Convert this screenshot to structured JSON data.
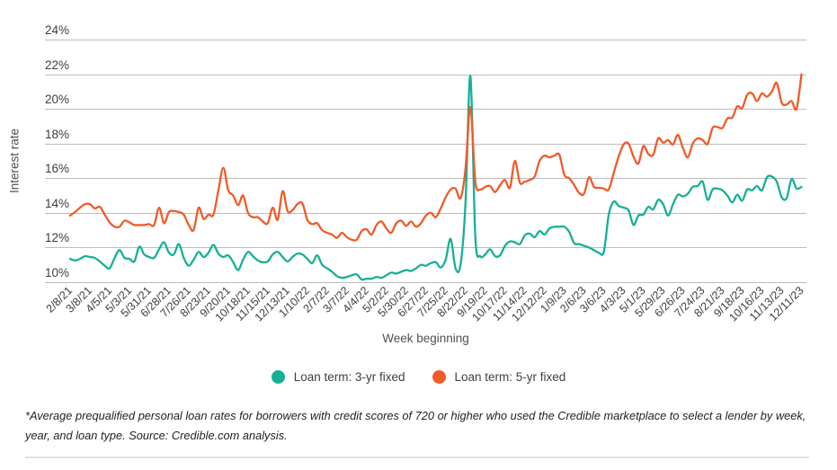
{
  "page": {
    "footnote": "*Average prequalified personal loan rates for borrowers with credit scores of 720 or higher who used the Credible marketplace to select a lender by week, year, and loan type. Source: Credible.com analysis."
  },
  "chart_data": {
    "type": "line",
    "title": "",
    "xlabel": "Week beginning",
    "ylabel": "Interest rate",
    "y_unit": "%",
    "ylim": [
      10,
      24
    ],
    "y_ticks": [
      24,
      22,
      20,
      18,
      16,
      14,
      12,
      10
    ],
    "grid": true,
    "legend_position": "bottom",
    "weeks_per_tick": 4,
    "colors": {
      "grid": "#bdbdbd",
      "tick_text": "#3c4043"
    },
    "x_tick_labels": [
      "2/8/21",
      "3/8/21",
      "4/5/21",
      "5/3/21",
      "5/31/21",
      "6/28/21",
      "7/26/21",
      "8/23/21",
      "9/20/21",
      "10/18/21",
      "11/15/21",
      "12/13/21",
      "1/10/22",
      "2/7/22",
      "3/7/22",
      "4/4/22",
      "5/2/22",
      "5/30/22",
      "6/27/22",
      "7/25/22",
      "8/22/22",
      "9/19/22",
      "10/17/22",
      "11/14/22",
      "12/12/22",
      "1/9/23",
      "2/6/23",
      "3/6/23",
      "4/3/23",
      "5/1/23",
      "5/29/23",
      "6/26/23",
      "7/24/23",
      "8/21/23",
      "9/18/23",
      "10/16/23",
      "11/13/23",
      "12/11/23"
    ],
    "series": [
      {
        "name": "Loan term: 3-yr fixed",
        "color": "#16b096",
        "values": [
          11.35,
          11.25,
          11.35,
          11.5,
          11.45,
          11.4,
          11.2,
          10.95,
          10.8,
          11.4,
          11.85,
          11.4,
          11.35,
          11.2,
          12.05,
          11.6,
          11.45,
          11.4,
          11.9,
          12.3,
          11.7,
          11.6,
          12.2,
          11.4,
          10.95,
          11.3,
          11.75,
          11.45,
          11.7,
          12.15,
          11.65,
          11.45,
          11.55,
          11.15,
          10.7,
          11.3,
          11.75,
          11.5,
          11.25,
          11.15,
          11.2,
          11.6,
          11.75,
          11.45,
          11.2,
          11.45,
          11.65,
          11.6,
          11.35,
          11.1,
          11.55,
          11.0,
          10.8,
          10.6,
          10.35,
          10.25,
          10.3,
          10.4,
          10.45,
          10.15,
          10.2,
          10.2,
          10.3,
          10.25,
          10.4,
          10.55,
          10.5,
          10.6,
          10.7,
          10.65,
          10.8,
          11.0,
          10.95,
          11.1,
          11.15,
          10.85,
          11.3,
          12.5,
          10.8,
          11.0,
          14.5,
          21.9,
          12.6,
          11.5,
          11.6,
          11.9,
          11.5,
          11.55,
          12.1,
          12.35,
          12.3,
          12.2,
          12.7,
          12.8,
          12.6,
          12.95,
          12.75,
          13.1,
          13.2,
          13.2,
          13.2,
          12.9,
          12.25,
          12.2,
          12.1,
          12.0,
          11.85,
          11.7,
          11.75,
          13.9,
          14.65,
          14.4,
          14.3,
          14.15,
          13.3,
          13.85,
          13.9,
          14.35,
          14.2,
          14.75,
          14.5,
          13.85,
          14.5,
          15.05,
          14.95,
          15.1,
          15.5,
          15.55,
          15.8,
          14.75,
          15.35,
          15.4,
          15.3,
          15.0,
          14.6,
          15.05,
          14.7,
          15.35,
          15.3,
          15.55,
          15.3,
          16.05,
          16.1,
          15.8,
          14.9,
          14.85,
          15.95,
          15.4,
          15.5
        ]
      },
      {
        "name": "Loan term: 5-yr fixed",
        "color": "#f05b28",
        "values": [
          13.85,
          14.05,
          14.3,
          14.5,
          14.5,
          14.25,
          14.35,
          13.9,
          13.45,
          13.2,
          13.2,
          13.55,
          13.45,
          13.3,
          13.3,
          13.3,
          13.35,
          13.3,
          14.3,
          13.4,
          14.05,
          14.1,
          14.05,
          13.9,
          13.3,
          13.0,
          14.3,
          13.65,
          13.9,
          13.9,
          15.3,
          16.6,
          15.3,
          15.0,
          14.45,
          15.0,
          14.0,
          13.75,
          13.75,
          13.5,
          13.4,
          14.3,
          13.6,
          15.25,
          14.1,
          14.15,
          14.5,
          14.55,
          13.6,
          13.35,
          13.4,
          13.0,
          12.85,
          12.75,
          12.55,
          12.85,
          12.6,
          12.45,
          12.45,
          12.95,
          13.05,
          12.75,
          13.3,
          13.5,
          13.1,
          12.85,
          13.4,
          13.55,
          13.25,
          13.5,
          13.2,
          13.4,
          13.85,
          14.0,
          13.75,
          14.25,
          14.9,
          15.35,
          15.4,
          14.85,
          16.5,
          20.1,
          15.8,
          15.35,
          15.5,
          15.55,
          15.2,
          15.6,
          15.9,
          15.45,
          17.0,
          15.75,
          15.8,
          15.9,
          16.1,
          17.0,
          17.3,
          17.2,
          17.3,
          17.35,
          16.2,
          16.0,
          15.6,
          15.15,
          15.1,
          16.05,
          15.5,
          15.45,
          15.4,
          15.35,
          16.3,
          17.25,
          17.95,
          18.0,
          17.25,
          16.85,
          17.85,
          17.4,
          17.35,
          18.3,
          18.05,
          18.2,
          17.95,
          18.5,
          17.75,
          17.2,
          18.0,
          18.3,
          18.2,
          17.98,
          18.9,
          18.95,
          18.9,
          19.45,
          19.5,
          20.15,
          20.05,
          20.8,
          20.9,
          20.45,
          20.9,
          20.7,
          21.0,
          21.5,
          20.35,
          20.25,
          20.45,
          20.0,
          22.0
        ]
      }
    ]
  }
}
